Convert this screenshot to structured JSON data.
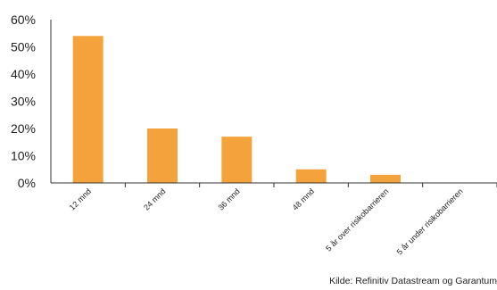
{
  "chart_data": {
    "type": "bar",
    "categories": [
      "12 mnd",
      "24 mnd",
      "36 mnd",
      "48 mnd",
      "5 år over risikobarrieren",
      "5 år under risikobarrieren"
    ],
    "values": [
      54,
      20,
      17,
      5,
      3,
      0
    ],
    "y_ticks": [
      "0%",
      "10%",
      "20%",
      "30%",
      "40%",
      "50%",
      "60%"
    ],
    "ylim": [
      0,
      60
    ],
    "bar_color": "#F4A23B",
    "axis_color": "#333333",
    "grid": false,
    "legend": "none",
    "title": "",
    "xlabel": "",
    "ylabel": ""
  },
  "source": "Kilde: Refinitiv Datastream og Garantum"
}
